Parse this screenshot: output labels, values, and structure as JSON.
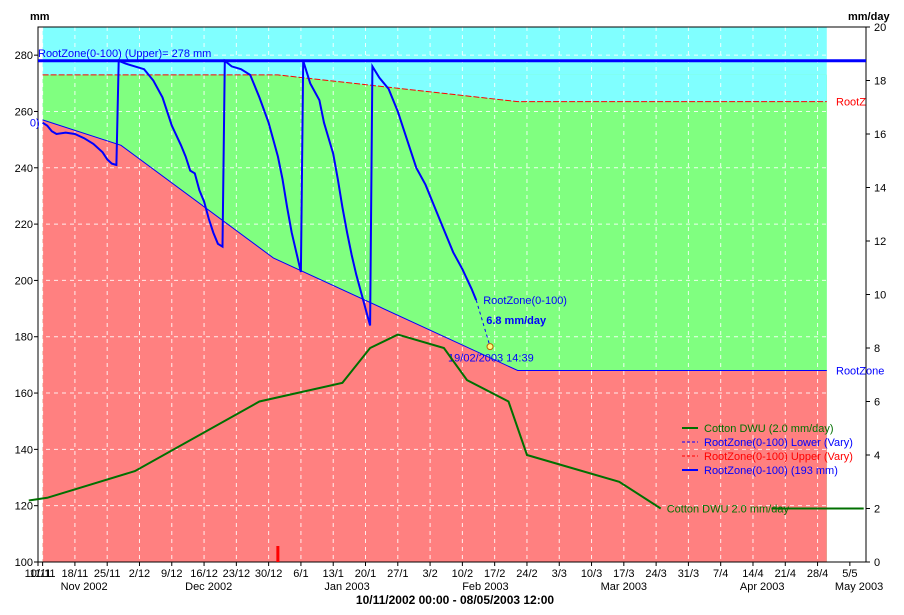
{
  "chart_data": {
    "type": "line",
    "left_axis_unit": "mm",
    "right_axis_unit": "mm/day",
    "y_left": {
      "min": 100,
      "max": 290,
      "ticks": [
        100,
        120,
        140,
        160,
        180,
        200,
        220,
        240,
        260,
        280
      ]
    },
    "y_right": {
      "min": 0,
      "max": 20,
      "ticks": [
        0,
        2,
        4,
        6,
        8,
        10,
        12,
        14,
        16,
        18,
        20
      ]
    },
    "x_start": "2002-11-10",
    "x_end": "2003-05-08",
    "x_tick_labels": [
      {
        "date": "2002-11-10",
        "label": "10/11"
      },
      {
        "date": "2002-11-11",
        "label": "11/11"
      },
      {
        "date": "2002-11-18",
        "label": "18/11"
      },
      {
        "date": "2002-11-25",
        "label": "25/11"
      },
      {
        "date": "2002-12-02",
        "label": "2/12"
      },
      {
        "date": "2002-12-09",
        "label": "9/12"
      },
      {
        "date": "2002-12-16",
        "label": "16/12"
      },
      {
        "date": "2002-12-23",
        "label": "23/12"
      },
      {
        "date": "2002-12-30",
        "label": "30/12"
      },
      {
        "date": "2003-01-06",
        "label": "6/1"
      },
      {
        "date": "2003-01-13",
        "label": "13/1"
      },
      {
        "date": "2003-01-20",
        "label": "20/1"
      },
      {
        "date": "2003-01-27",
        "label": "27/1"
      },
      {
        "date": "2003-02-03",
        "label": "3/2"
      },
      {
        "date": "2003-02-10",
        "label": "10/2"
      },
      {
        "date": "2003-02-17",
        "label": "17/2"
      },
      {
        "date": "2003-02-24",
        "label": "24/2"
      },
      {
        "date": "2003-03-03",
        "label": "3/3"
      },
      {
        "date": "2003-03-10",
        "label": "10/3"
      },
      {
        "date": "2003-03-17",
        "label": "17/3"
      },
      {
        "date": "2003-03-24",
        "label": "24/3"
      },
      {
        "date": "2003-03-31",
        "label": "31/3"
      },
      {
        "date": "2003-04-07",
        "label": "7/4"
      },
      {
        "date": "2003-04-14",
        "label": "14/4"
      },
      {
        "date": "2003-04-21",
        "label": "21/4"
      },
      {
        "date": "2003-04-28",
        "label": "28/4"
      },
      {
        "date": "2003-05-05",
        "label": "5/5"
      }
    ],
    "month_labels": [
      {
        "date": "2002-11-20",
        "label": "Nov 2002"
      },
      {
        "date": "2002-12-17",
        "label": "Dec 2002"
      },
      {
        "date": "2003-01-16",
        "label": "Jan 2003"
      },
      {
        "date": "2003-02-15",
        "label": "Feb 2003"
      },
      {
        "date": "2003-03-17",
        "label": "Mar 2003"
      },
      {
        "date": "2003-04-16",
        "label": "Apr 2003"
      },
      {
        "date": "2003-05-07",
        "label": "May 2003"
      }
    ],
    "date_range_label": "10/11/2002 00:00 - 08/05/2003 12:00",
    "zone_start": "2002-11-11",
    "zone_end": "2003-04-30",
    "upper_full_line": {
      "value": 278,
      "label": "RootZone(0-100) (Upper)= 278 mm"
    },
    "upper_vary": {
      "points": [
        [
          "2002-11-11",
          273
        ],
        [
          "2003-01-01",
          273
        ],
        [
          "2003-02-22",
          263.5
        ],
        [
          "2003-04-30",
          263.5
        ]
      ],
      "end_label": "RootZ"
    },
    "lower_vary": {
      "points": [
        [
          "2002-11-11",
          257
        ],
        [
          "2002-11-28",
          248
        ],
        [
          "2002-12-31",
          208
        ],
        [
          "2003-02-22",
          168
        ],
        [
          "2003-04-30",
          168
        ]
      ],
      "end_label": "RootZone"
    },
    "rootzone_series": {
      "name": "RootZone(0-100) (193 mm)",
      "points": [
        [
          "2002-11-11",
          256
        ],
        [
          "2002-11-12",
          255
        ],
        [
          "2002-11-13",
          253
        ],
        [
          "2002-11-14",
          252
        ],
        [
          "2002-11-16",
          252.5
        ],
        [
          "2002-11-18",
          252
        ],
        [
          "2002-11-20",
          250.5
        ],
        [
          "2002-11-22",
          248.5
        ],
        [
          "2002-11-24",
          245.5
        ],
        [
          "2002-11-25",
          243
        ],
        [
          "2002-11-26",
          241.5
        ],
        [
          "2002-11-27",
          241
        ],
        [
          "2002-11-27.5",
          278
        ],
        [
          "2002-11-29",
          277
        ],
        [
          "2002-12-01",
          276
        ],
        [
          "2002-12-03",
          275
        ],
        [
          "2002-12-05",
          271
        ],
        [
          "2002-12-07",
          265
        ],
        [
          "2002-12-09",
          255
        ],
        [
          "2002-12-11",
          248
        ],
        [
          "2002-12-12",
          244
        ],
        [
          "2002-12-13",
          239
        ],
        [
          "2002-12-14",
          238
        ],
        [
          "2002-12-15",
          232
        ],
        [
          "2002-12-16",
          228
        ],
        [
          "2002-12-17",
          222
        ],
        [
          "2002-12-18",
          217
        ],
        [
          "2002-12-19",
          213
        ],
        [
          "2002-12-20",
          212
        ],
        [
          "2002-12-20.5",
          278
        ],
        [
          "2002-12-22",
          276
        ],
        [
          "2002-12-24",
          275
        ],
        [
          "2002-12-26",
          273
        ],
        [
          "2002-12-28",
          265
        ],
        [
          "2002-12-30",
          256
        ],
        [
          "2003-01-01",
          244
        ],
        [
          "2003-01-02",
          236
        ],
        [
          "2003-01-03",
          226
        ],
        [
          "2003-01-04",
          217
        ],
        [
          "2003-01-05",
          210
        ],
        [
          "2003-01-06",
          203
        ],
        [
          "2003-01-06.5",
          278
        ],
        [
          "2003-01-08",
          270
        ],
        [
          "2003-01-10",
          264
        ],
        [
          "2003-01-11",
          256
        ],
        [
          "2003-01-13",
          245
        ],
        [
          "2003-01-14",
          236
        ],
        [
          "2003-01-15",
          226
        ],
        [
          "2003-01-16",
          217
        ],
        [
          "2003-01-17",
          209
        ],
        [
          "2003-01-18",
          202
        ],
        [
          "2003-01-19",
          196
        ],
        [
          "2003-01-20",
          190
        ],
        [
          "2003-01-21",
          184
        ],
        [
          "2003-01-21.5",
          276
        ],
        [
          "2003-01-23",
          272
        ],
        [
          "2003-01-25",
          268
        ],
        [
          "2003-01-27",
          260
        ],
        [
          "2003-01-29",
          250
        ],
        [
          "2003-01-31",
          240
        ],
        [
          "2003-02-02",
          234
        ],
        [
          "2003-02-04",
          226
        ],
        [
          "2003-02-06",
          218
        ],
        [
          "2003-02-08",
          210
        ],
        [
          "2003-02-10",
          204
        ],
        [
          "2003-02-12",
          197
        ],
        [
          "2003-02-13",
          193
        ]
      ]
    },
    "forecast": {
      "from": [
        "2003-02-13",
        193
      ],
      "to": [
        "2003-02-16",
        176.5
      ],
      "series_label": "RootZone(0-100)",
      "rate_label": "6.8 mm/day",
      "date_label": "19/02/2003 14:39"
    },
    "dwu_series": {
      "name": "Cotton DWU (2.0 mm/day)",
      "axis": "right",
      "points": [
        [
          "2002-11-08",
          2.3
        ],
        [
          "2002-11-12",
          2.4
        ],
        [
          "2002-12-01",
          3.4
        ],
        [
          "2002-12-28",
          6.0
        ],
        [
          "2003-01-15",
          6.7
        ],
        [
          "2003-01-21",
          8.0
        ],
        [
          "2003-01-27",
          8.5
        ],
        [
          "2003-02-06",
          8.0
        ],
        [
          "2003-02-11",
          6.8
        ],
        [
          "2003-02-20",
          6.0
        ],
        [
          "2003-02-24",
          4.0
        ],
        [
          "2003-03-16",
          3.0
        ],
        [
          "2003-03-25",
          2.0
        ]
      ],
      "end_label": "Cotton DWU 2.0 mm/day",
      "right_segment": [
        [
          "2003-04-18",
          2.0
        ],
        [
          "2003-05-08",
          2.0
        ]
      ]
    },
    "marker_date": "2003-01-01",
    "legend": [
      {
        "label": "Cotton DWU (2.0 mm/day)",
        "color": "#007000",
        "style": "solid"
      },
      {
        "label": "RootZone(0-100) Lower (Vary)",
        "color": "#0000ff",
        "style": "dashed"
      },
      {
        "label": "RootZone(0-100) Upper (Vary)",
        "color": "#ff0000",
        "style": "dashed"
      },
      {
        "label": "RootZone(0-100) (193 mm)",
        "color": "#0000ff",
        "style": "solid"
      }
    ],
    "legend_position": "bottom-right",
    "grid": true,
    "colors": {
      "zone_full": "#80ffff",
      "zone_ok": "#80ff80",
      "zone_stress": "#ff8080",
      "rootzone": "#0000ff",
      "dwu": "#007000",
      "upper": "#ff0000",
      "full_line": "#0000ff",
      "marker": "#ff0000"
    }
  }
}
